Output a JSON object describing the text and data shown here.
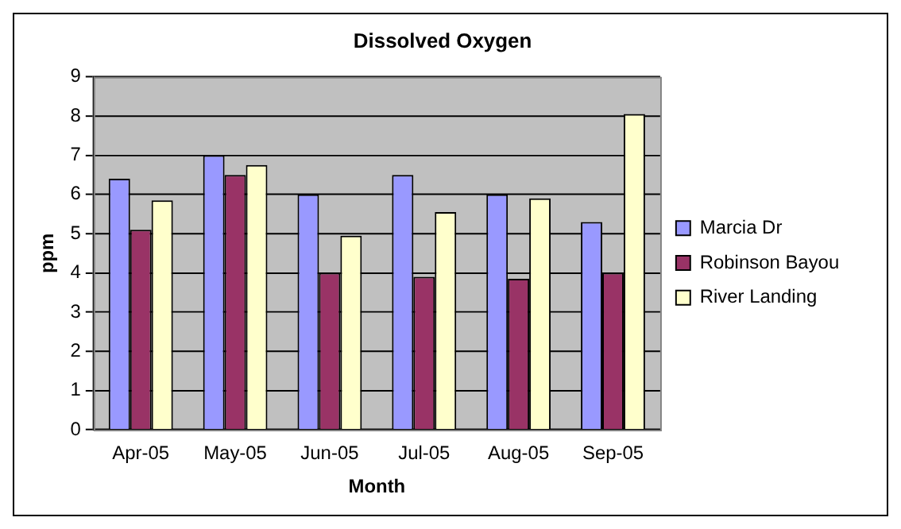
{
  "chart_data": {
    "type": "bar",
    "title": "Dissolved Oxygen",
    "xlabel": "Month",
    "ylabel": "ppm",
    "categories": [
      "Apr-05",
      "May-05",
      "Jun-05",
      "Jul-05",
      "Aug-05",
      "Sep-05"
    ],
    "series": [
      {
        "name": "Marcia Dr",
        "color": "#9999ff",
        "values": [
          6.4,
          7.0,
          6.0,
          6.5,
          6.0,
          5.3
        ]
      },
      {
        "name": "Robinson Bayou",
        "color": "#993366",
        "values": [
          5.1,
          6.5,
          4.0,
          3.9,
          3.85,
          4.0
        ]
      },
      {
        "name": "River Landing",
        "color": "#ffffcc",
        "values": [
          5.85,
          6.75,
          4.95,
          5.55,
          5.9,
          8.05
        ]
      }
    ],
    "ylim": [
      0,
      9
    ],
    "yticks": [
      0,
      1,
      2,
      3,
      4,
      5,
      6,
      7,
      8,
      9
    ],
    "grid": "y",
    "legend": "right"
  }
}
